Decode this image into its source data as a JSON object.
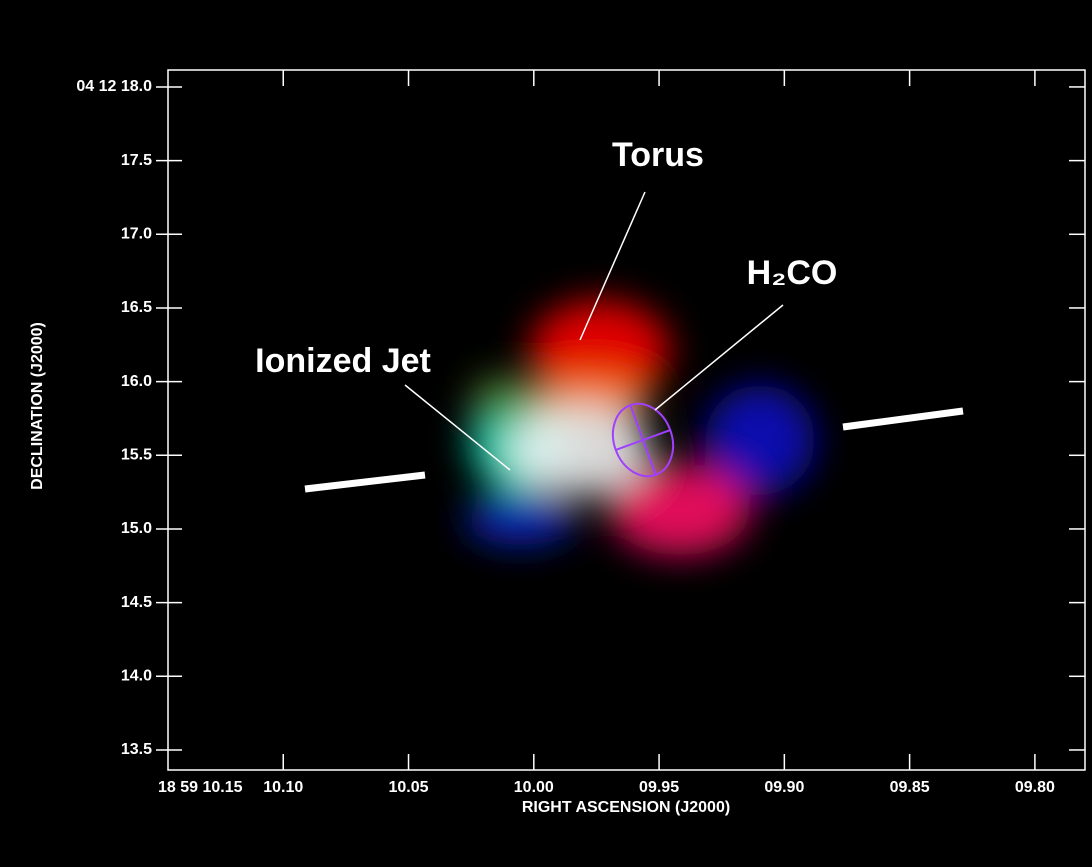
{
  "chart_data": {
    "type": "image",
    "x_label": "RIGHT ASCENSION (J2000)",
    "y_label": "DECLINATION (J2000)",
    "xlim": [
      10.146,
      9.78
    ],
    "xticks": [
      {
        "value": 10.15,
        "label": "18 59 10.15"
      },
      {
        "value": 10.1,
        "label": "10.10"
      },
      {
        "value": 10.05,
        "label": "10.05"
      },
      {
        "value": 10.0,
        "label": "10.00"
      },
      {
        "value": 9.95,
        "label": "09.95"
      },
      {
        "value": 9.9,
        "label": "09.90"
      },
      {
        "value": 9.85,
        "label": "09.85"
      },
      {
        "value": 9.8,
        "label": "09.80"
      }
    ],
    "ylim": [
      13.364,
      18.115
    ],
    "yticks": [
      {
        "value": 18.0,
        "label": "04 12 18.0"
      },
      17.5,
      {
        "value": 17.0,
        "label": "17.0"
      },
      16.5,
      {
        "value": 16.0,
        "label": "16.0"
      },
      15.5,
      {
        "value": 15.0,
        "label": "15.0"
      },
      14.5,
      {
        "value": 14.0,
        "label": "14.0"
      },
      13.5
    ],
    "annotations": [
      "Torus",
      "H₂CO",
      "Ionized Jet"
    ]
  }
}
